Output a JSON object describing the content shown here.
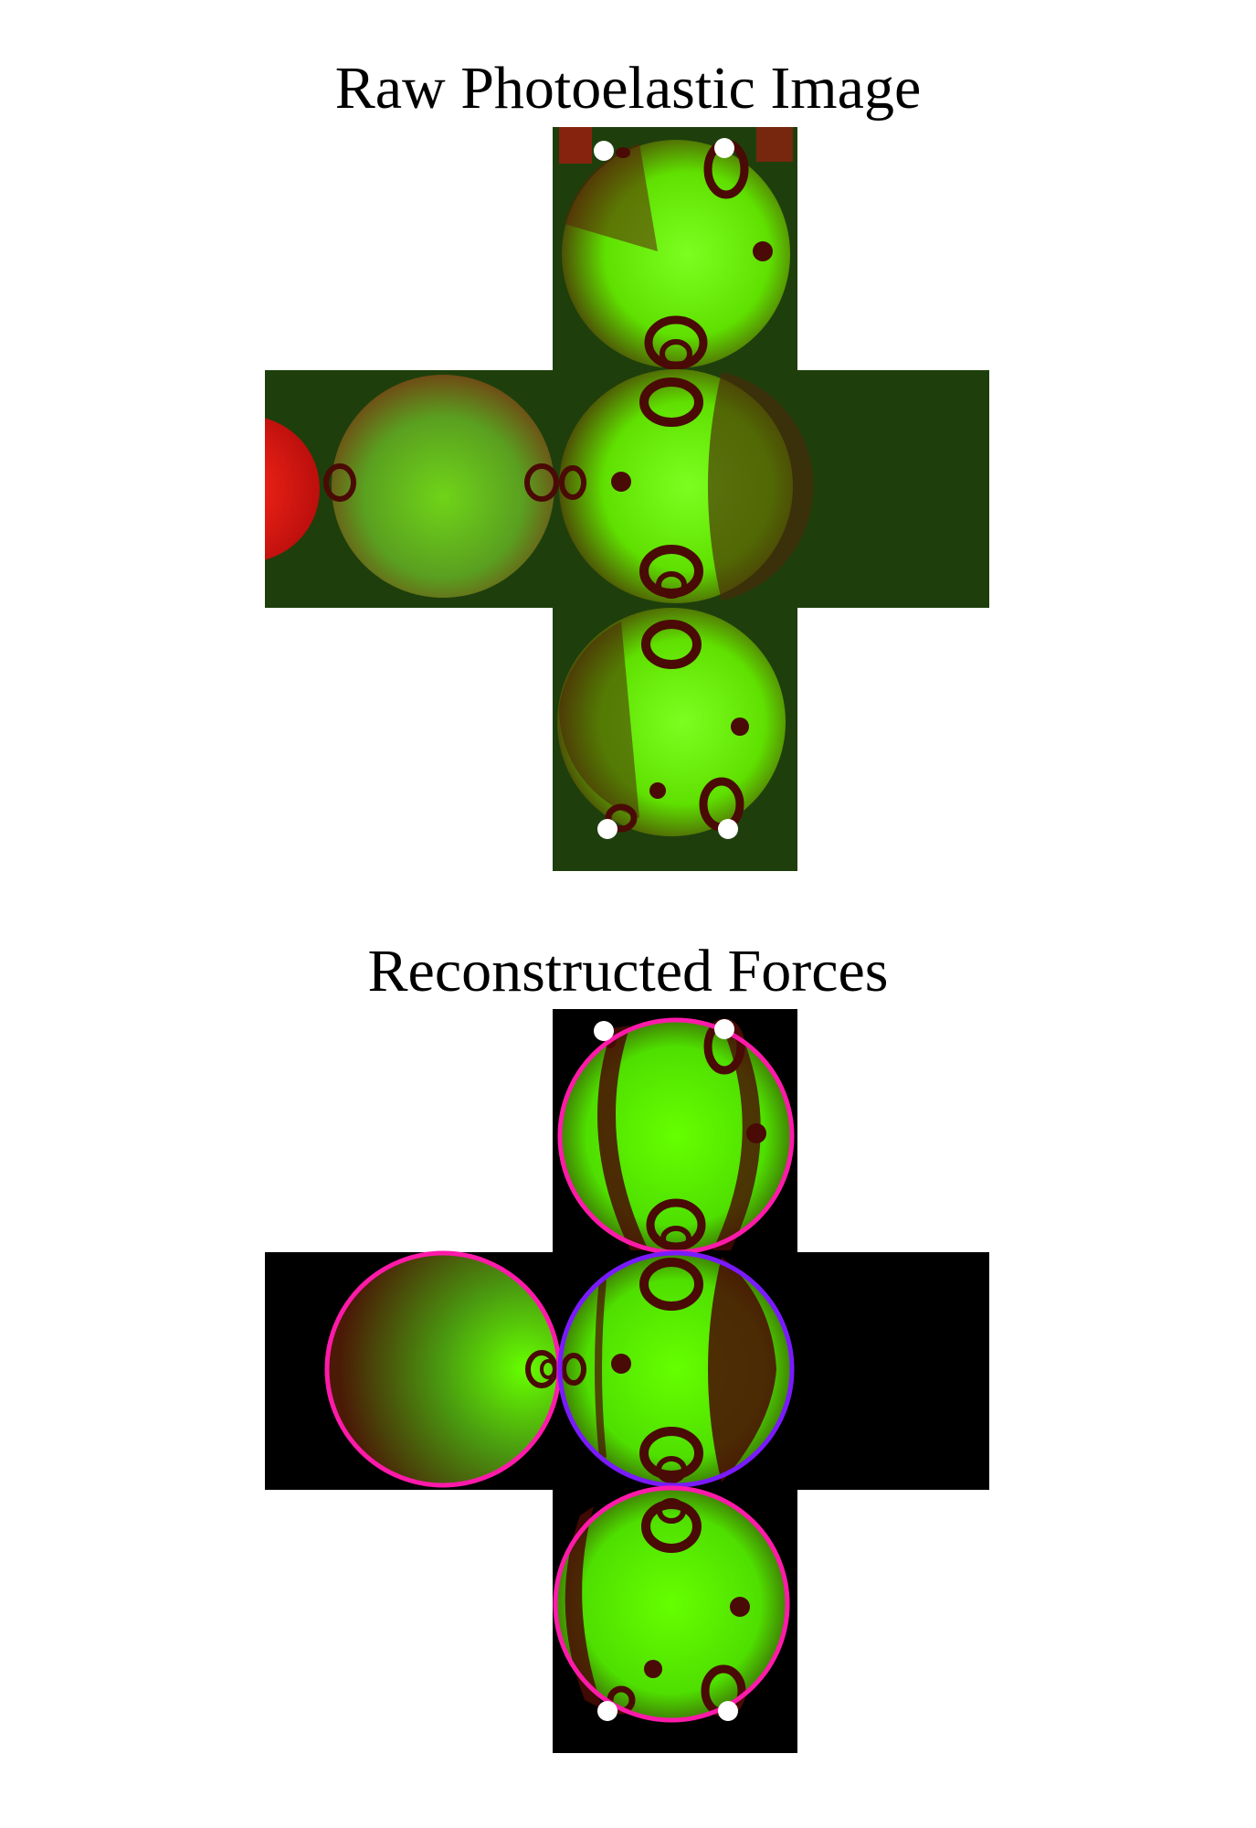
{
  "panels": {
    "top": {
      "title": "Raw Photoelastic Image"
    },
    "bottom": {
      "title": "Reconstructed Forces"
    }
  },
  "colors": {
    "background": "#ffffff",
    "raw_cross": "#1e3f0c",
    "recon_cross": "#000000",
    "fringe_green": "#5cff00",
    "fringe_dark": "#4a0a05",
    "raw_red_disk": "#e01414",
    "outline_magenta": "#ff1aaa",
    "outline_violet": "#7a1aff",
    "marker": "#ffffff"
  }
}
